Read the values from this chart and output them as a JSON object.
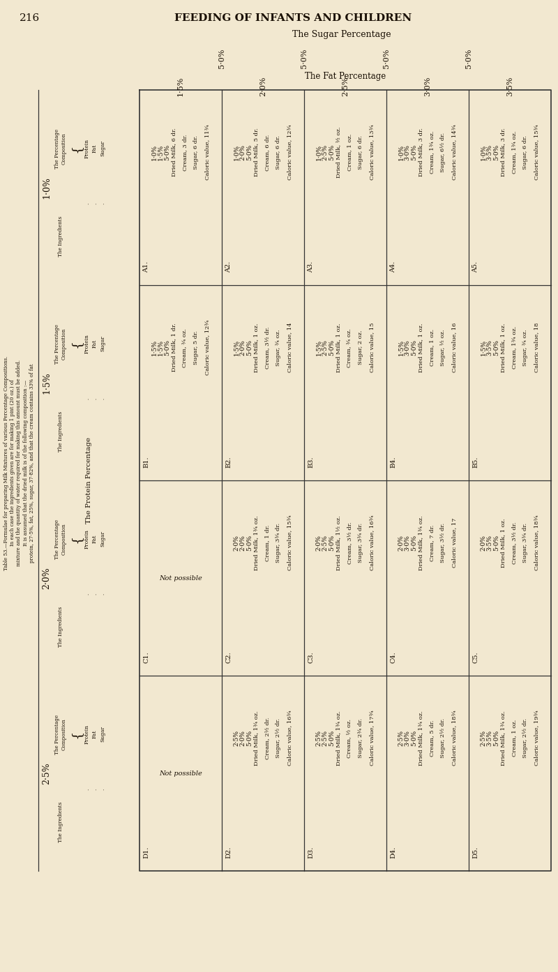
{
  "page_num": "216",
  "header": "FEEDING OF INFANTS AND CHILDREN",
  "sugar_pct_label": "The Sugar Percentage",
  "fat_pct_label": "The Fat Percentage",
  "protein_pct_label": "The Protein Percentage",
  "fat_columns": [
    "1·5%",
    "2·0%",
    "2·5%",
    "3·0%",
    "3·5%"
  ],
  "sugar_col_values": [
    "5·0%",
    "5·0%",
    "5·0%",
    "5·0%"
  ],
  "protein_rows": [
    "1·0%",
    "1·5%",
    "2·0%",
    "2·5%"
  ],
  "cell_labels": [
    [
      "A1.",
      "A2.",
      "A3.",
      "A4.",
      "A5."
    ],
    [
      "B1.",
      "B2.",
      "B3.",
      "B4.",
      "B5."
    ],
    [
      "C1.",
      "C2.",
      "C3.",
      "C4.",
      "C5."
    ],
    [
      "D1.",
      "D2.",
      "D3.",
      "D4.",
      "D5."
    ]
  ],
  "cells": {
    "A1": {
      "prot": "1·0%",
      "fat": "1·5%",
      "sugar": "5·0%",
      "lines": [
        "Dried Milk, 6 dr.",
        "Cream, 3 dr.",
        "Sugar, 6 dr.",
        "Caloric value, 11¾"
      ]
    },
    "A2": {
      "prot": "1·0%",
      "fat": "2·0%",
      "sugar": "5·0%",
      "lines": [
        "Dried Milk, 5 dr.",
        "Cream, 6 dr.",
        "Sugar, 6 dr.",
        "Caloric value, 12¾"
      ]
    },
    "A3": {
      "prot": "1·0%",
      "fat": "2·5%",
      "sugar": "5·0%",
      "lines": [
        "Dried Milk, ½ oz.",
        "Cream, 1 oz.",
        "Sugar, 6 dr.",
        "Caloric value, 13¾"
      ]
    },
    "A4": {
      "prot": "1·0%",
      "fat": "3·0%",
      "sugar": "5·0%",
      "lines": [
        "Dried Milk, 3 dr.",
        "Cream, 1¾ oz.",
        "Sugar, 6½ dr.",
        "Caloric value, 14¾"
      ]
    },
    "A5": {
      "prot": "1·0%",
      "fat": "3·5%",
      "sugar": "5·0%",
      "lines": [
        "Dried Milk, 3 dr.",
        "Cream, 1¾ oz.",
        "Sugar, 6 dr.",
        "Caloric value, 15¾"
      ]
    },
    "B1": {
      "prot": "1·5%",
      "fat": "1·5%",
      "sugar": "5·0%",
      "lines": [
        "Dried Milk, 1 dr.",
        "Cream, ¾ oz.",
        "Sugar, 5 dr.",
        "Caloric value, 12¾"
      ]
    },
    "B2": {
      "prot": "1·5%",
      "fat": "2·0%",
      "sugar": "5·0%",
      "lines": [
        "Dried Milk, 1 oz.",
        "Cream, 3½ dr.",
        "Sugar, ¾ oz.",
        "Caloric value, 14"
      ]
    },
    "B3": {
      "prot": "1·5%",
      "fat": "2·5%",
      "sugar": "5·0%",
      "lines": [
        "Dried Milk, 1 oz.",
        "Cream, ¾ oz.",
        "Sugar, 2 oz.",
        "Caloric value, 15"
      ]
    },
    "B4": {
      "prot": "1·5%",
      "fat": "3·0%",
      "sugar": "5·0%",
      "lines": [
        "Dried Milk, 1 oz.",
        "Cream, 1 oz.",
        "Sugar, ½ oz.",
        "Caloric value, 16"
      ]
    },
    "B5": {
      "prot": "1·5%",
      "fat": "3·5%",
      "sugar": "5·0%",
      "lines": [
        "Dried Milk, 1 oz.",
        "Cream, 1¾ oz.",
        "Sugar, ¾ oz.",
        "Caloric value, 18"
      ]
    },
    "C1": {
      "not_possible": true
    },
    "C2": {
      "prot": "2·0%",
      "fat": "2·0%",
      "sugar": "5·0%",
      "lines": [
        "Dried Milk, 1¾ oz.",
        "Cream, 1 dr.",
        "Sugar, 3¾ dr.",
        "Caloric value, 15¾"
      ]
    },
    "C3": {
      "prot": "2·0%",
      "fat": "2·5%",
      "sugar": "5·0%",
      "lines": [
        "Dried Milk, 1½ oz.",
        "Cream, 3½ dr.",
        "Sugar, 3¾ dr.",
        "Caloric value, 16¾"
      ]
    },
    "C4": {
      "prot": "2·0%",
      "fat": "3·0%",
      "sugar": "5·0%",
      "lines": [
        "Dried Milk, 1¾ oz.",
        "Cream, 7 dr.",
        "Sugar, 3½ dr.",
        "Caloric value, 17"
      ]
    },
    "C5": {
      "prot": "2·0%",
      "fat": "3·5%",
      "sugar": "5·0%",
      "lines": [
        "Dried Milk, 1 oz.",
        "Cream, 3½ dr.",
        "Sugar, 3¾ dr.",
        "Caloric value, 18¾"
      ]
    },
    "D1": {
      "not_possible": true
    },
    "D2": {
      "prot": "2·5%",
      "fat": "2·0%",
      "sugar": "5·0%",
      "lines": [
        "Dried Milk, 1¾ oz.",
        "Cream, 2½ dr.",
        "Sugar, 2½ dr.",
        "Caloric value, 16¾"
      ]
    },
    "D3": {
      "prot": "2·5%",
      "fat": "2·5%",
      "sugar": "5·0%",
      "lines": [
        "Dried Milk, 1¾ oz.",
        "Cream, ½ oz.",
        "Sugar, 2¾ dr.",
        "Caloric value, 17¾"
      ]
    },
    "D4": {
      "prot": "2·5%",
      "fat": "3·0%",
      "sugar": "5·0%",
      "lines": [
        "Dried Milk, 1¾ oz.",
        "Cream, 5 dr.",
        "Sugar, 2½ dr.",
        "Caloric value, 18¾"
      ]
    },
    "D5": {
      "prot": "2·5%",
      "fat": "3·5%",
      "sugar": "5·0%",
      "lines": [
        "Dried Milk, 1¾ oz.",
        "Cream, 1 oz.",
        "Sugar, 2½ dr.",
        "Caloric value, 19¾"
      ]
    }
  },
  "left_caption_lines": [
    "Table 53.—Formulae for preparing Milk Mixtures of various Percentage Compositions.",
    "In each case the ingredients given are for making 1 pint (20 oz.) of",
    "mixture and the quantity of water required for making this amount must be added.",
    "It is assumed that the dried milk is of the following composition :—",
    "protein, 27·5%, fat, 25%, sugar, 37·82%, and that the cream contains 33% of fat"
  ],
  "comp_labels": [
    "Protein",
    "Fat",
    "Sugar"
  ],
  "bg_color": "#f2e8d0",
  "text_color": "#1a1005",
  "line_color": "#333333"
}
